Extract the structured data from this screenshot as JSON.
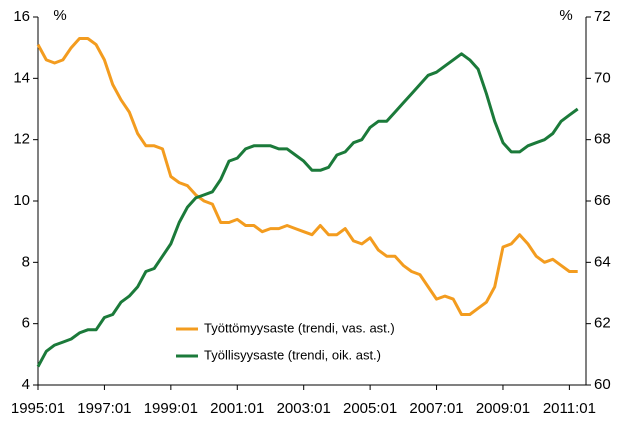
{
  "chart_data": {
    "type": "line",
    "y_unit": "%",
    "y2_unit": "%",
    "x": [
      1995,
      1995.25,
      1995.5,
      1995.75,
      1996,
      1996.25,
      1996.5,
      1996.75,
      1997,
      1997.25,
      1997.5,
      1997.75,
      1998,
      1998.25,
      1998.5,
      1998.75,
      1999,
      1999.25,
      1999.5,
      1999.75,
      2000,
      2000.25,
      2000.5,
      2000.75,
      2001,
      2001.25,
      2001.5,
      2001.75,
      2002,
      2002.25,
      2002.5,
      2002.75,
      2003,
      2003.25,
      2003.5,
      2003.75,
      2004,
      2004.25,
      2004.5,
      2004.75,
      2005,
      2005.25,
      2005.5,
      2005.75,
      2006,
      2006.25,
      2006.5,
      2006.75,
      2007,
      2007.25,
      2007.5,
      2007.75,
      2008,
      2008.25,
      2008.5,
      2008.75,
      2009,
      2009.25,
      2009.5,
      2009.75,
      2010,
      2010.25,
      2010.5,
      2010.75,
      2011,
      2011.25
    ],
    "series": [
      {
        "name": "Työttömyysaste (trendi, vas. ast.)",
        "color": "#f39c1f",
        "axis": "y",
        "values": [
          15.1,
          14.6,
          14.5,
          14.6,
          15.0,
          15.3,
          15.3,
          15.1,
          14.6,
          13.8,
          13.3,
          12.9,
          12.2,
          11.8,
          11.8,
          11.7,
          10.8,
          10.6,
          10.5,
          10.2,
          10.0,
          9.9,
          9.3,
          9.3,
          9.4,
          9.2,
          9.2,
          9.0,
          9.1,
          9.1,
          9.2,
          9.1,
          9.0,
          8.9,
          9.2,
          8.9,
          8.9,
          9.1,
          8.7,
          8.6,
          8.8,
          8.4,
          8.2,
          8.2,
          7.9,
          7.7,
          7.6,
          7.2,
          6.8,
          6.9,
          6.8,
          6.3,
          6.3,
          6.5,
          6.7,
          7.2,
          8.5,
          8.6,
          8.9,
          8.6,
          8.2,
          8.0,
          8.1,
          7.9,
          7.7,
          7.7
        ]
      },
      {
        "name": "Työllisyysaste (trendi, oik. ast.)",
        "color": "#1b7a3a",
        "axis": "y2",
        "values": [
          60.6,
          61.1,
          61.3,
          61.4,
          61.5,
          61.7,
          61.8,
          61.8,
          62.2,
          62.3,
          62.7,
          62.9,
          63.2,
          63.7,
          63.8,
          64.2,
          64.6,
          65.3,
          65.8,
          66.1,
          66.2,
          66.3,
          66.7,
          67.3,
          67.4,
          67.7,
          67.8,
          67.8,
          67.8,
          67.7,
          67.7,
          67.5,
          67.3,
          67.0,
          67.0,
          67.1,
          67.5,
          67.6,
          67.9,
          68.0,
          68.4,
          68.6,
          68.6,
          68.9,
          69.2,
          69.5,
          69.8,
          70.1,
          70.2,
          70.4,
          70.6,
          70.8,
          70.6,
          70.3,
          69.5,
          68.6,
          67.9,
          67.6,
          67.6,
          67.8,
          67.9,
          68.0,
          68.2,
          68.6,
          68.8,
          69.0
        ]
      }
    ],
    "xlim": [
      1995,
      2011.5
    ],
    "xticks": [
      {
        "value": 1995,
        "label": "1995:01"
      },
      {
        "value": 1997,
        "label": "1997:01"
      },
      {
        "value": 1999,
        "label": "1999:01"
      },
      {
        "value": 2001,
        "label": "2001:01"
      },
      {
        "value": 2003,
        "label": "2003:01"
      },
      {
        "value": 2005,
        "label": "2005:01"
      },
      {
        "value": 2007,
        "label": "2007:01"
      },
      {
        "value": 2009,
        "label": "2009:01"
      },
      {
        "value": 2011,
        "label": "2011:01"
      }
    ],
    "ylim": [
      4,
      16
    ],
    "yticks": [
      4,
      6,
      8,
      10,
      12,
      14,
      16
    ],
    "y2lim": [
      60,
      72
    ],
    "y2ticks": [
      60,
      62,
      64,
      66,
      68,
      70,
      72
    ],
    "legend": "bottom-center"
  }
}
